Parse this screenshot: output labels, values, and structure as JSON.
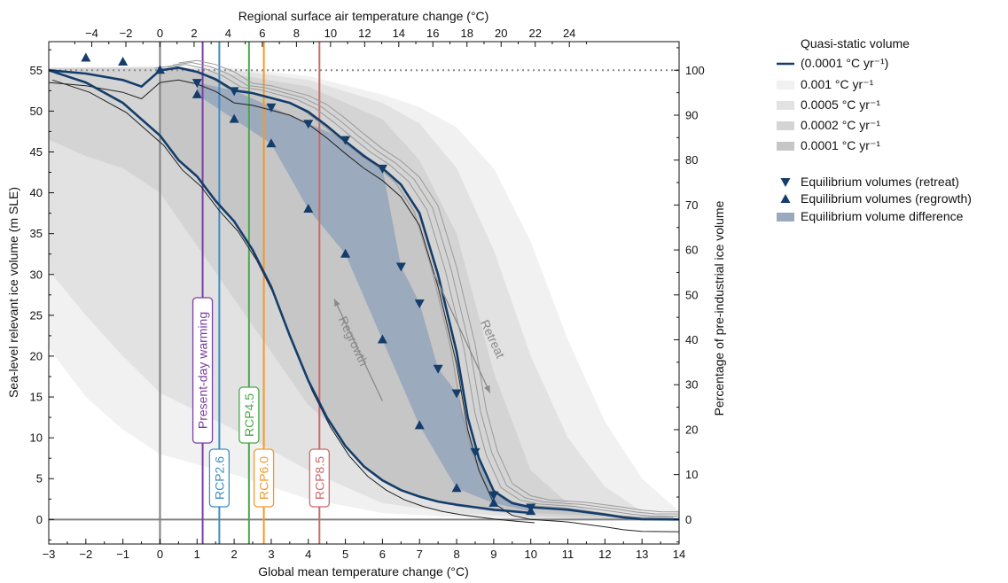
{
  "chart_data": {
    "type": "line",
    "xlabel": "Global mean temperature change (°C)",
    "ylabel": "Sea-level relevant ice volume (m SLE)",
    "x2label": "Regional surface air temperature change (°C)",
    "y2label": "Percentage of pre-industrial ice volume",
    "xlim": [
      -3,
      14
    ],
    "ylim": [
      -3,
      58.5
    ],
    "xticks": [
      -3,
      -2,
      -1,
      0,
      1,
      2,
      3,
      4,
      5,
      6,
      7,
      8,
      9,
      10,
      11,
      12,
      13,
      14
    ],
    "yticks": [
      0,
      5,
      10,
      15,
      20,
      25,
      30,
      35,
      40,
      45,
      50,
      55
    ],
    "x2ticks": [
      -4,
      -2,
      0,
      2,
      4,
      6,
      8,
      10,
      12,
      14,
      16,
      18,
      20,
      22,
      24
    ],
    "y2ticks": [
      0,
      10,
      20,
      30,
      40,
      50,
      60,
      70,
      80,
      90,
      100
    ],
    "pre_industrial_volume": 55,
    "legend": {
      "items": [
        {
          "label": "Quasi-static volume",
          "style": "none"
        },
        {
          "label": "(0.0001 °C yr⁻¹)",
          "style": "line",
          "color": "#143d6b"
        },
        {
          "label": "0.001 °C yr⁻¹",
          "style": "band",
          "color": "#f1f1f1"
        },
        {
          "label": "0.0005 °C yr⁻¹",
          "style": "band",
          "color": "#e2e2e2"
        },
        {
          "label": "0.0002 °C yr⁻¹",
          "style": "band",
          "color": "#d4d4d4"
        },
        {
          "label": "0.0001 °C yr⁻¹",
          "style": "band",
          "color": "#c6c6c6"
        },
        {
          "label": "",
          "style": "none"
        },
        {
          "label": "Equilibrium volumes (retreat)",
          "style": "down-triangle",
          "color": "#143d6b"
        },
        {
          "label": "Equilibrium volumes (regrowth)",
          "style": "up-triangle",
          "color": "#143d6b"
        },
        {
          "label": "Equilibrium volume difference",
          "style": "patch",
          "color": "#9aa9bd"
        }
      ]
    },
    "scenarios": [
      {
        "label": "Present-day warming",
        "x": 1.15,
        "color": "#7b3fa3"
      },
      {
        "label": "RCP2.6",
        "x": 1.6,
        "color": "#3e8ec6"
      },
      {
        "label": "RCP4.5",
        "x": 2.4,
        "color": "#4aa84a"
      },
      {
        "label": "RCP6.0",
        "x": 2.8,
        "color": "#f39a2a"
      },
      {
        "label": "RCP8.5",
        "x": 4.3,
        "color": "#d0676a"
      }
    ],
    "arrows": [
      {
        "label": "Regrowth",
        "from": [
          6.0,
          14.5
        ],
        "to": [
          4.7,
          27
        ]
      },
      {
        "label": "Retreat",
        "from": [
          7.4,
          30
        ],
        "to": [
          8.9,
          15.5
        ]
      }
    ],
    "bands": [
      {
        "name": "0.001 °C yr⁻¹",
        "color": "#f1f1f1",
        "upper": [
          [
            -3,
            55.3
          ],
          [
            0,
            55.5
          ],
          [
            2,
            55.3
          ],
          [
            4,
            54.3
          ],
          [
            6,
            52
          ],
          [
            7,
            50.5
          ],
          [
            8,
            48
          ],
          [
            9,
            43
          ],
          [
            10,
            34
          ],
          [
            11,
            22
          ],
          [
            12,
            12
          ],
          [
            13,
            5
          ],
          [
            14,
            1
          ]
        ],
        "lower": [
          [
            14,
            0
          ],
          [
            12,
            0
          ],
          [
            10,
            0.1
          ],
          [
            8,
            0.3
          ],
          [
            6,
            0.8
          ],
          [
            4,
            2.5
          ],
          [
            2,
            5.5
          ],
          [
            0,
            8
          ],
          [
            -1,
            11
          ],
          [
            -2,
            15
          ],
          [
            -3,
            21
          ]
        ]
      },
      {
        "name": "0.0005 °C yr⁻¹",
        "color": "#e2e2e2",
        "upper": [
          [
            -3,
            55.3
          ],
          [
            0,
            55.4
          ],
          [
            2,
            55
          ],
          [
            4,
            53.8
          ],
          [
            6,
            51
          ],
          [
            7,
            48.5
          ],
          [
            8,
            43
          ],
          [
            9,
            33
          ],
          [
            10,
            20
          ],
          [
            11,
            10
          ],
          [
            12,
            4
          ],
          [
            13,
            1
          ],
          [
            14,
            0.3
          ]
        ],
        "lower": [
          [
            14,
            0
          ],
          [
            12,
            0
          ],
          [
            10,
            0.2
          ],
          [
            8,
            0.8
          ],
          [
            6,
            2
          ],
          [
            4,
            6
          ],
          [
            2,
            11
          ],
          [
            0,
            15.5
          ],
          [
            -1,
            20
          ],
          [
            -2,
            25
          ],
          [
            -3,
            30.5
          ]
        ]
      },
      {
        "name": "0.0002 °C yr⁻¹",
        "color": "#d4d4d4",
        "upper": [
          [
            -3,
            55.3
          ],
          [
            0,
            55.3
          ],
          [
            2,
            54.5
          ],
          [
            4,
            53
          ],
          [
            6,
            49
          ],
          [
            7,
            44
          ],
          [
            8,
            35
          ],
          [
            9,
            18
          ],
          [
            10,
            6
          ],
          [
            11,
            2
          ],
          [
            12,
            0.6
          ],
          [
            13,
            0.2
          ],
          [
            14,
            0
          ]
        ],
        "lower": [
          [
            14,
            0
          ],
          [
            12,
            0.1
          ],
          [
            10,
            0.4
          ],
          [
            8,
            1.5
          ],
          [
            6,
            6
          ],
          [
            4,
            14
          ],
          [
            2,
            27
          ],
          [
            0,
            40
          ],
          [
            -1,
            43
          ],
          [
            -2,
            44.5
          ],
          [
            -3,
            46.5
          ]
        ]
      }
    ],
    "series": [
      {
        "name": "Quasi-static volume (0.0001 °C yr⁻¹) retreat",
        "color": "#143d6b",
        "x": [
          -3,
          -2,
          -1,
          -0.5,
          0,
          0.5,
          1,
          1.5,
          2,
          2.5,
          3,
          3.5,
          4,
          4.5,
          5,
          5.5,
          6,
          6.5,
          7,
          7.5,
          8,
          8.3,
          8.6,
          9,
          9.5,
          10,
          11,
          12,
          12.5,
          13,
          14
        ],
        "y": [
          55,
          54.6,
          53.8,
          53,
          55,
          55.3,
          54.8,
          53.9,
          52.5,
          52.2,
          51.6,
          51.0,
          49.9,
          48.2,
          46.3,
          44.5,
          43.0,
          41.0,
          37.5,
          30.0,
          20.5,
          12.5,
          7.5,
          3.5,
          2.0,
          1.5,
          1.2,
          0.6,
          0.25,
          0.05,
          0
        ]
      },
      {
        "name": "Quasi-static volume (0.0001 °C yr⁻¹) regrowth",
        "color": "#143d6b",
        "x": [
          -3,
          -2,
          -1,
          0,
          0.5,
          1,
          1.5,
          2,
          2.5,
          3,
          3.5,
          4,
          4.5,
          5,
          5.5,
          6,
          6.5,
          7,
          7.5,
          8,
          8.5,
          9,
          9.5,
          10
        ],
        "y": [
          55,
          53.5,
          51,
          47,
          44,
          42,
          39,
          36.5,
          33,
          28.5,
          22.5,
          17,
          12.5,
          9,
          6.5,
          4.8,
          3.6,
          2.8,
          2.2,
          1.8,
          1.5,
          1.2,
          1.0,
          0.8
        ]
      }
    ],
    "equilibrium_retreat": {
      "x": [
        1,
        2,
        3,
        4,
        5,
        6,
        6.5,
        7,
        7.5,
        8,
        8.5,
        9,
        10
      ],
      "y": [
        53.5,
        52.5,
        50.5,
        48.5,
        46.5,
        43,
        31,
        26.5,
        18.5,
        15.5,
        8.3,
        3,
        1.5
      ]
    },
    "equilibrium_regrowth": {
      "x": [
        -2,
        -1,
        0,
        1,
        2,
        3,
        4,
        5,
        6,
        7,
        8,
        9,
        10
      ],
      "y": [
        56.5,
        56,
        55,
        52,
        49,
        46,
        38,
        32.5,
        22,
        11.5,
        3.8,
        2,
        1
      ]
    }
  }
}
